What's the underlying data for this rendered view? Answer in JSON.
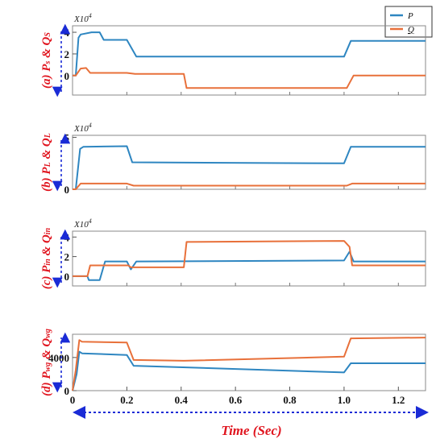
{
  "legend": [
    {
      "label": "P",
      "color": "#2e86c1"
    },
    {
      "label": "Q",
      "color": "#e8703a"
    }
  ],
  "chart_data": [
    {
      "type": "line",
      "panel": "(a)",
      "ylabel": {
        "main": "P",
        "sub1": "s",
        "mid": " & ",
        "q": "Q",
        "sub2": "S"
      },
      "multiplier": "X10",
      "multiplier_exp": "4",
      "yticks": [
        {
          "v": 0,
          "label": "0"
        },
        {
          "v": 2,
          "label": "2"
        },
        {
          "v": 4,
          "label": "4"
        }
      ],
      "ylim": [
        -1.8,
        4.6
      ],
      "xlim": [
        0,
        1.3
      ],
      "grid": false,
      "series": [
        {
          "name": "P",
          "points": [
            [
              0,
              0
            ],
            [
              0.012,
              0
            ],
            [
              0.022,
              3.5
            ],
            [
              0.03,
              3.8
            ],
            [
              0.07,
              4.0
            ],
            [
              0.1,
              4.0
            ],
            [
              0.115,
              3.3
            ],
            [
              0.2,
              3.3
            ],
            [
              0.235,
              1.75
            ],
            [
              1.0,
              1.75
            ],
            [
              1.025,
              3.2
            ],
            [
              1.3,
              3.2
            ]
          ]
        },
        {
          "name": "Q",
          "points": [
            [
              0,
              0
            ],
            [
              0.012,
              0
            ],
            [
              0.03,
              0.65
            ],
            [
              0.05,
              0.7
            ],
            [
              0.065,
              0.25
            ],
            [
              0.2,
              0.25
            ],
            [
              0.23,
              0.15
            ],
            [
              0.41,
              0.15
            ],
            [
              0.42,
              -1.15
            ],
            [
              1.01,
              -1.15
            ],
            [
              1.035,
              0
            ],
            [
              1.3,
              0
            ]
          ]
        }
      ]
    },
    {
      "type": "line",
      "panel": "(b)",
      "ylabel": {
        "main": "P",
        "sub1": "L",
        "mid": " & ",
        "q": "Q",
        "sub2": "L"
      },
      "multiplier": "X10",
      "multiplier_exp": "4",
      "yticks": [
        {
          "v": 0,
          "label": "0"
        },
        {
          "v": 5,
          "label": "5"
        }
      ],
      "ylim": [
        0,
        5.2
      ],
      "xlim": [
        0,
        1.3
      ],
      "grid": false,
      "series": [
        {
          "name": "P",
          "points": [
            [
              0,
              0
            ],
            [
              0.012,
              0
            ],
            [
              0.028,
              3.9
            ],
            [
              0.04,
              4.1
            ],
            [
              0.2,
              4.15
            ],
            [
              0.22,
              2.6
            ],
            [
              1.0,
              2.5
            ],
            [
              1.025,
              4.1
            ],
            [
              1.3,
              4.1
            ]
          ]
        },
        {
          "name": "Q",
          "points": [
            [
              0,
              0
            ],
            [
              0.012,
              0
            ],
            [
              0.03,
              0.55
            ],
            [
              0.2,
              0.55
            ],
            [
              0.225,
              0.35
            ],
            [
              1.01,
              0.35
            ],
            [
              1.03,
              0.55
            ],
            [
              1.3,
              0.55
            ]
          ]
        }
      ]
    },
    {
      "type": "line",
      "panel": "(c)",
      "ylabel": {
        "main": "P",
        "sub1": "in",
        "mid": " & ",
        "q": "Q",
        "sub2": "in"
      },
      "multiplier": "X10",
      "multiplier_exp": "4",
      "yticks": [
        {
          "v": 0,
          "label": "0"
        },
        {
          "v": 2,
          "label": "2"
        },
        {
          "v": 4,
          "label": "4"
        }
      ],
      "ylim": [
        -1.0,
        4.6
      ],
      "xlim": [
        0,
        1.3
      ],
      "grid": false,
      "series": [
        {
          "name": "P",
          "points": [
            [
              0,
              0
            ],
            [
              0.055,
              0
            ],
            [
              0.06,
              -0.4
            ],
            [
              0.1,
              -0.4
            ],
            [
              0.12,
              1.5
            ],
            [
              0.2,
              1.5
            ],
            [
              0.215,
              0.7
            ],
            [
              0.235,
              1.5
            ],
            [
              1.0,
              1.6
            ],
            [
              1.02,
              2.5
            ],
            [
              1.035,
              1.5
            ],
            [
              1.3,
              1.5
            ]
          ]
        },
        {
          "name": "Q",
          "points": [
            [
              0,
              0
            ],
            [
              0.055,
              0
            ],
            [
              0.065,
              1.1
            ],
            [
              0.205,
              1.1
            ],
            [
              0.215,
              0.9
            ],
            [
              0.41,
              0.9
            ],
            [
              0.42,
              3.5
            ],
            [
              1.0,
              3.6
            ],
            [
              1.02,
              3.0
            ],
            [
              1.03,
              1.1
            ],
            [
              1.3,
              1.1
            ]
          ]
        }
      ]
    },
    {
      "type": "line",
      "panel": "(d)",
      "ylabel": {
        "main": "P",
        "sub1": "wg",
        "mid": " & ",
        "q": "Q",
        "sub2": "wg"
      },
      "multiplier": "",
      "multiplier_exp": "",
      "yticks": [
        {
          "v": 0,
          "label": "0"
        },
        {
          "v": 4000,
          "label": "4000"
        }
      ],
      "ylim": [
        0,
        6800
      ],
      "xlim": [
        0,
        1.3
      ],
      "xlabel": "Time (Sec)",
      "xticks": [
        {
          "v": 0,
          "label": "0"
        },
        {
          "v": 0.2,
          "label": "0.2"
        },
        {
          "v": 0.4,
          "label": "0.4"
        },
        {
          "v": 0.6,
          "label": "0.6"
        },
        {
          "v": 0.8,
          "label": "0.8"
        },
        {
          "v": 1.0,
          "label": "1.0"
        },
        {
          "v": 1.2,
          "label": "1.2"
        }
      ],
      "grid": false,
      "series": [
        {
          "name": "P",
          "points": [
            [
              0,
              0
            ],
            [
              0.015,
              2000
            ],
            [
              0.025,
              4700
            ],
            [
              0.035,
              4500
            ],
            [
              0.2,
              4300
            ],
            [
              0.225,
              3000
            ],
            [
              1.0,
              2200
            ],
            [
              1.025,
              3300
            ],
            [
              1.3,
              3300
            ]
          ]
        },
        {
          "name": "Q",
          "points": [
            [
              0,
              0
            ],
            [
              0.012,
              2500
            ],
            [
              0.025,
              6100
            ],
            [
              0.035,
              5900
            ],
            [
              0.2,
              5800
            ],
            [
              0.225,
              3700
            ],
            [
              0.41,
              3600
            ],
            [
              1.0,
              4100
            ],
            [
              1.025,
              6300
            ],
            [
              1.3,
              6400
            ]
          ]
        }
      ]
    }
  ]
}
